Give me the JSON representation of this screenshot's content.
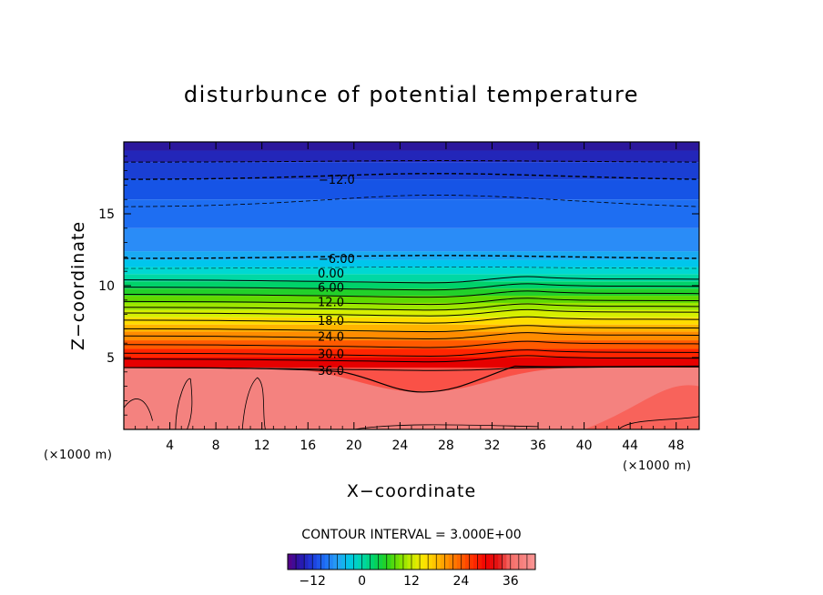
{
  "chart_data": {
    "type": "heatmap",
    "title": "disturbunce of potential temperature",
    "xlabel": "X−coordinate",
    "ylabel": "Z−coordinate",
    "x_unit_left": "(×1000 m)",
    "x_unit_right": "(×1000 m)",
    "xlim": [
      0,
      50
    ],
    "ylim": [
      0,
      20
    ],
    "x_ticks": [
      4,
      8,
      12,
      16,
      20,
      24,
      28,
      32,
      36,
      40,
      44,
      48
    ],
    "y_ticks": [
      5,
      10,
      15
    ],
    "contour_interval_text": "CONTOUR INTERVAL = 3.000E+00",
    "contour_interval": 3,
    "contour_labels": [
      {
        "text": "−12.0",
        "value": -12,
        "x": 18.5,
        "z": 17.4
      },
      {
        "text": "−6.00",
        "value": -6,
        "x": 18.5,
        "z": 11.9
      },
      {
        "text": "0.00",
        "value": 0,
        "x": 18.0,
        "z": 10.9
      },
      {
        "text": "6.00",
        "value": 6,
        "x": 18.0,
        "z": 9.9
      },
      {
        "text": "12.0",
        "value": 12,
        "x": 18.0,
        "z": 8.9
      },
      {
        "text": "18.0",
        "value": 18,
        "x": 18.0,
        "z": 7.6
      },
      {
        "text": "24.0",
        "value": 24,
        "x": 18.0,
        "z": 6.5
      },
      {
        "text": "30.0",
        "value": 30,
        "x": 18.0,
        "z": 5.3
      },
      {
        "text": "36.0",
        "value": 36,
        "x": 18.0,
        "z": 4.1
      }
    ],
    "color_scale": {
      "min": -18,
      "max": 42,
      "tick_values": [
        -12,
        0,
        12,
        24,
        36
      ],
      "tick_labels": [
        "−12",
        "0",
        "12",
        "24",
        "36"
      ]
    },
    "grid": false
  }
}
